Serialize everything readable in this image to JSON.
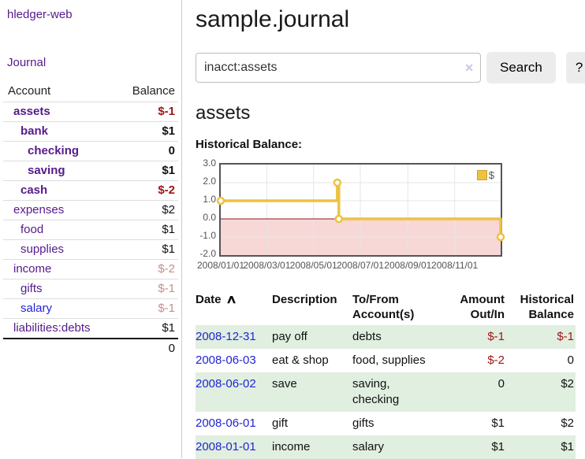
{
  "palette": {
    "link_purple": "#551a8b",
    "link_blue": "#2323d6",
    "negative_strong": "#a31515",
    "negative_muted": "#c98d8d",
    "row_green": "#e0efe0",
    "button_gray": "#ececec",
    "border_gray": "#cccccc",
    "axis_gray": "#545454",
    "series_gold": "#edc240"
  },
  "sidebar": {
    "app_title": "hledger-web",
    "nav_journal": "Journal",
    "accounts_table": {
      "headers": {
        "account": "Account",
        "balance": "Balance"
      },
      "rows": [
        {
          "name": "assets",
          "depth": 0,
          "bold": true,
          "link_tone": "visited",
          "balance": "$-1",
          "balance_tone": "negative"
        },
        {
          "name": "bank",
          "depth": 1,
          "bold": true,
          "link_tone": "visited",
          "balance": "$1",
          "balance_tone": "normal"
        },
        {
          "name": "checking",
          "depth": 2,
          "bold": true,
          "link_tone": "visited",
          "balance": "0",
          "balance_tone": "normal"
        },
        {
          "name": "saving",
          "depth": 2,
          "bold": true,
          "link_tone": "visited",
          "balance": "$1",
          "balance_tone": "normal"
        },
        {
          "name": "cash",
          "depth": 1,
          "bold": true,
          "link_tone": "visited",
          "balance": "$-2",
          "balance_tone": "negative"
        },
        {
          "name": "expenses",
          "depth": 0,
          "bold": false,
          "link_tone": "visited",
          "balance": "$2",
          "balance_tone": "normal"
        },
        {
          "name": "food",
          "depth": 1,
          "bold": false,
          "link_tone": "visited",
          "balance": "$1",
          "balance_tone": "normal"
        },
        {
          "name": "supplies",
          "depth": 1,
          "bold": false,
          "link_tone": "visited",
          "balance": "$1",
          "balance_tone": "normal"
        },
        {
          "name": "income",
          "depth": 0,
          "bold": false,
          "link_tone": "visited",
          "balance": "$-2",
          "balance_tone": "negative-muted"
        },
        {
          "name": "gifts",
          "depth": 1,
          "bold": false,
          "link_tone": "visited",
          "balance": "$-1",
          "balance_tone": "negative-muted"
        },
        {
          "name": "salary",
          "depth": 1,
          "bold": false,
          "link_tone": "unvisited",
          "balance": "$-1",
          "balance_tone": "negative-muted"
        },
        {
          "name": "liabilities:debts",
          "depth": 0,
          "bold": false,
          "link_tone": "visited",
          "balance": "$1",
          "balance_tone": "normal"
        }
      ],
      "total": "0"
    }
  },
  "main": {
    "title": "sample.journal",
    "search": {
      "value": "inacct:assets",
      "clear_icon": "✕",
      "search_button": "Search",
      "help_button": "?"
    },
    "account_heading": "assets",
    "chart_title": "Historical Balance:",
    "register": {
      "sort_arrow": "∧",
      "headers": [
        {
          "line1": "Date",
          "line2": "",
          "align": "left",
          "sorted": true
        },
        {
          "line1": "Description",
          "line2": "",
          "align": "left"
        },
        {
          "line1": "To/From",
          "line2": "Account(s)",
          "align": "left"
        },
        {
          "line1": "Amount",
          "line2": "Out/In",
          "align": "right"
        },
        {
          "line1": "Historical",
          "line2": "Balance",
          "align": "right"
        }
      ],
      "rows": [
        {
          "date": "2008-12-31",
          "description": "pay off",
          "accounts": "debts",
          "amount": "$-1",
          "balance": "$-1"
        },
        {
          "date": "2008-06-03",
          "description": "eat & shop",
          "accounts": "food, supplies",
          "amount": "$-2",
          "balance": "0"
        },
        {
          "date": "2008-06-02",
          "description": "save",
          "accounts": "saving, checking",
          "amount": "0",
          "balance": "$2"
        },
        {
          "date": "2008-06-01",
          "description": "gift",
          "accounts": "gifts",
          "amount": "$1",
          "balance": "$2"
        },
        {
          "date": "2008-01-01",
          "description": "income",
          "accounts": "salary",
          "amount": "$1",
          "balance": "$1"
        }
      ]
    }
  },
  "chart_data": {
    "type": "line",
    "style": "steps",
    "title": "Historical Balance",
    "series": [
      {
        "name": "$",
        "color": "#edc240",
        "points": [
          [
            "2008-01-01",
            1
          ],
          [
            "2008-06-01",
            2
          ],
          [
            "2008-06-03",
            0
          ],
          [
            "2008-12-31",
            -1
          ]
        ]
      }
    ],
    "ylim": [
      -2,
      3
    ],
    "yticks": [
      3,
      2,
      1,
      0,
      -1,
      -2
    ],
    "xticks": [
      {
        "label": "2008/01/01",
        "date": "2008-01-01"
      },
      {
        "label": "2008/03/01",
        "date": "2008-03-01"
      },
      {
        "label": "2008/05/01",
        "date": "2008-05-01"
      },
      {
        "label": "2008/07/01",
        "date": "2008-07-01"
      },
      {
        "label": "2008/09/01",
        "date": "2008-09-01"
      },
      {
        "label": "2008/11/01",
        "date": "2008-11-01"
      }
    ],
    "x_range": [
      "2008-01-01",
      "2008-12-31"
    ],
    "legend": {
      "label": "$",
      "position": "top-right"
    },
    "negative_region_color": "#f8d7d7",
    "zero_line_color": "#8b1a1a",
    "grid_color": "#e6e6e6"
  }
}
